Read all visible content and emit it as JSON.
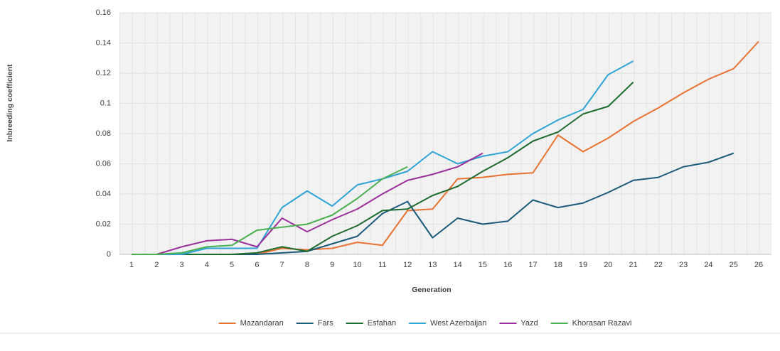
{
  "chart_data": {
    "type": "line",
    "y_label": "Inbreeding coefficient",
    "x_label": "Generation",
    "categories": [
      "1",
      "2",
      "3",
      "4",
      "5",
      "6",
      "7",
      "8",
      "9",
      "10",
      "11",
      "12",
      "13",
      "14",
      "15",
      "16",
      "17",
      "18",
      "19",
      "20",
      "21",
      "22",
      "23",
      "24",
      "25",
      "26"
    ],
    "ylim": [
      0,
      0.16
    ],
    "yticks": [
      0,
      0.02,
      0.04,
      0.06,
      0.08,
      0.1,
      0.12,
      0.14,
      0.16
    ],
    "grid": true,
    "legend": "bottom",
    "series": [
      {
        "name": "Mazandaran",
        "color": "#e97132",
        "values": [
          0,
          0,
          0,
          0,
          0,
          0,
          0.004,
          0.003,
          0.004,
          0.008,
          0.006,
          0.029,
          0.03,
          0.05,
          0.051,
          0.053,
          0.054,
          0.079,
          0.068,
          0.077,
          0.088,
          0.097,
          0.107,
          0.116,
          0.123,
          0.141
        ]
      },
      {
        "name": "Fars",
        "color": "#1b5a7a",
        "values": [
          0,
          0,
          0,
          0,
          0,
          0,
          0.001,
          0.002,
          0.007,
          0.012,
          0.027,
          0.035,
          0.011,
          0.024,
          0.02,
          0.022,
          0.036,
          0.031,
          0.034,
          0.041,
          0.049,
          0.051,
          0.058,
          0.061,
          0.067,
          null
        ]
      },
      {
        "name": "Esfahan",
        "color": "#1e6b2e",
        "values": [
          0,
          0,
          0,
          0,
          0,
          0.001,
          0.005,
          0.002,
          0.012,
          0.019,
          0.029,
          0.03,
          0.039,
          0.045,
          0.055,
          0.064,
          0.075,
          0.081,
          0.093,
          0.098,
          0.114,
          null,
          null,
          null,
          null,
          null
        ]
      },
      {
        "name": "West Azerbaijan",
        "color": "#2ea3d6",
        "values": [
          0,
          0,
          0,
          0.004,
          0.004,
          0.004,
          0.031,
          0.042,
          0.032,
          0.046,
          0.05,
          0.055,
          0.068,
          0.06,
          0.065,
          0.068,
          0.08,
          0.089,
          0.096,
          0.119,
          0.128,
          null,
          null,
          null,
          null,
          null
        ]
      },
      {
        "name": "Yazd",
        "color": "#9b2f9b",
        "values": [
          0,
          0,
          0.005,
          0.009,
          0.01,
          0.005,
          0.024,
          0.015,
          0.023,
          0.03,
          0.04,
          0.049,
          0.053,
          0.058,
          0.067,
          null,
          null,
          null,
          null,
          null,
          null,
          null,
          null,
          null,
          null,
          null
        ]
      },
      {
        "name": "Khorasan Razavi",
        "color": "#4caf50",
        "values": [
          0,
          0,
          0.001,
          0.005,
          0.006,
          0.016,
          0.018,
          0.02,
          0.026,
          0.037,
          0.05,
          0.058,
          null,
          null,
          null,
          null,
          null,
          null,
          null,
          null,
          null,
          null,
          null,
          null,
          null,
          null
        ]
      }
    ]
  }
}
